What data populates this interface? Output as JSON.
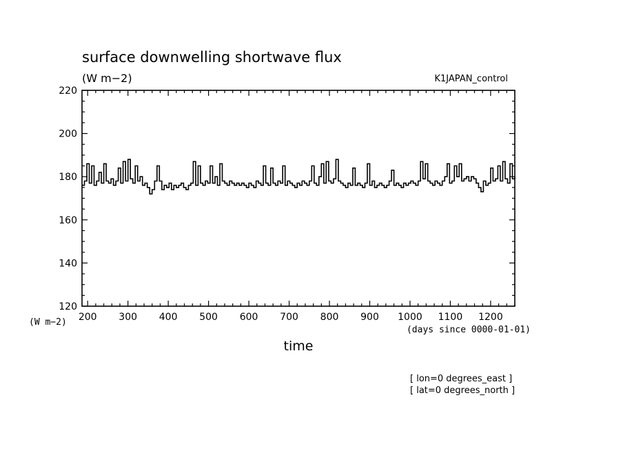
{
  "chart_data": {
    "type": "line",
    "title": "surface downwelling shortwave flux",
    "subtitle": "(W m−2)",
    "run_label": "K1JAPAN_control",
    "ylabel": "(W m−2)",
    "xlabel": "time",
    "x_units": "(days since 0000-01-01)",
    "location_lines": [
      "[ lon=0 degrees_east ]",
      "[ lat=0 degrees_north ]"
    ],
    "xlim": [
      186,
      1260
    ],
    "ylim": [
      120,
      220
    ],
    "x_ticks": [
      200,
      300,
      400,
      500,
      600,
      700,
      800,
      900,
      1000,
      1100,
      1200
    ],
    "y_ticks": [
      120,
      140,
      160,
      180,
      200,
      220
    ],
    "grid": false,
    "line_color": "#000000",
    "series": [
      {
        "x": [
          186,
          192,
          198,
          204,
          210,
          216,
          222,
          228,
          234,
          240,
          246,
          252,
          258,
          264,
          270,
          276,
          282,
          288,
          294,
          300,
          306,
          312,
          318,
          324,
          330,
          336,
          342,
          348,
          354,
          360,
          366,
          372,
          378,
          384,
          390,
          396,
          402,
          408,
          414,
          420,
          426,
          432,
          438,
          444,
          450,
          456,
          462,
          468,
          474,
          480,
          486,
          492,
          498,
          504,
          510,
          516,
          522,
          528,
          534,
          540,
          546,
          552,
          558,
          564,
          570,
          576,
          582,
          588,
          594,
          600,
          606,
          612,
          618,
          624,
          630,
          636,
          642,
          648,
          654,
          660,
          666,
          672,
          678,
          684,
          690,
          696,
          702,
          708,
          714,
          720,
          726,
          732,
          738,
          744,
          750,
          756,
          762,
          768,
          774,
          780,
          786,
          792,
          798,
          804,
          810,
          816,
          822,
          828,
          834,
          840,
          846,
          852,
          858,
          864,
          870,
          876,
          882,
          888,
          894,
          900,
          906,
          912,
          918,
          924,
          930,
          936,
          942,
          948,
          954,
          960,
          966,
          972,
          978,
          984,
          990,
          996,
          1002,
          1008,
          1014,
          1020,
          1026,
          1032,
          1038,
          1044,
          1050,
          1056,
          1062,
          1068,
          1074,
          1080,
          1086,
          1092,
          1098,
          1104,
          1110,
          1116,
          1122,
          1128,
          1134,
          1140,
          1146,
          1152,
          1158,
          1164,
          1170,
          1176,
          1182,
          1188,
          1194,
          1200,
          1206,
          1212,
          1218,
          1224,
          1230,
          1236,
          1242,
          1248,
          1254,
          1260
        ],
        "values": [
          176,
          178,
          186,
          177,
          185,
          176,
          178,
          182,
          177,
          186,
          178,
          177,
          179,
          176,
          178,
          184,
          177,
          187,
          178,
          188,
          179,
          177,
          185,
          178,
          180,
          176,
          177,
          175,
          172,
          174,
          178,
          185,
          178,
          174,
          176,
          175,
          177,
          174,
          176,
          175,
          176,
          177,
          175,
          174,
          176,
          177,
          187,
          176,
          185,
          177,
          176,
          178,
          177,
          185,
          177,
          180,
          176,
          186,
          178,
          177,
          176,
          178,
          177,
          176,
          177,
          176,
          177,
          176,
          175,
          177,
          176,
          175,
          178,
          177,
          176,
          185,
          177,
          176,
          184,
          177,
          176,
          178,
          177,
          185,
          176,
          178,
          177,
          176,
          175,
          177,
          176,
          178,
          177,
          176,
          178,
          185,
          177,
          176,
          180,
          186,
          177,
          187,
          178,
          177,
          179,
          188,
          178,
          177,
          176,
          175,
          177,
          176,
          184,
          176,
          177,
          176,
          175,
          177,
          186,
          176,
          178,
          175,
          176,
          177,
          176,
          175,
          176,
          178,
          183,
          176,
          177,
          176,
          175,
          177,
          176,
          177,
          178,
          177,
          176,
          178,
          187,
          179,
          186,
          178,
          177,
          176,
          178,
          177,
          176,
          178,
          180,
          186,
          177,
          178,
          185,
          180,
          186,
          178,
          179,
          180,
          178,
          180,
          179,
          177,
          175,
          173,
          178,
          176,
          177,
          184,
          178,
          179,
          185,
          178,
          187,
          179,
          177,
          186,
          179,
          180
        ]
      }
    ]
  }
}
